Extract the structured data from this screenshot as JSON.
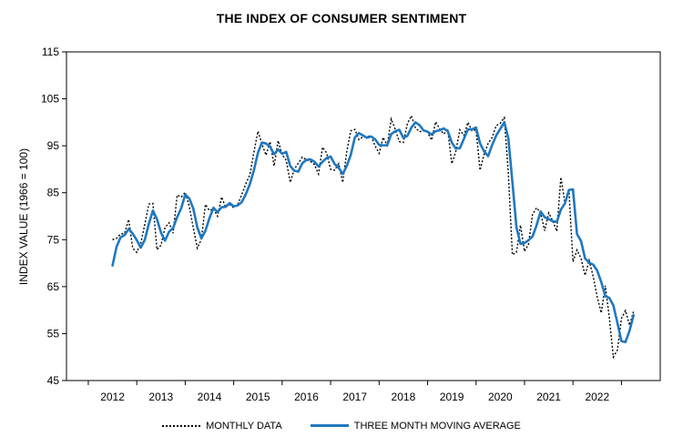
{
  "chart_data": {
    "type": "line",
    "title": "THE INDEX OF CONSUMER SENTIMENT",
    "xlabel": "",
    "ylabel": "INDEX VALUE (1966 = 100)",
    "ylim": [
      45,
      115
    ],
    "xlim": [
      2011.05,
      2023.3
    ],
    "yticks": [
      45,
      55,
      65,
      75,
      85,
      95,
      105,
      115
    ],
    "xticks": [
      "2012",
      "2013",
      "2014",
      "2015",
      "2016",
      "2017",
      "2018",
      "2019",
      "2020",
      "2021",
      "2022"
    ],
    "grid": false,
    "legend_position": "bottom",
    "series": [
      {
        "name": "MONTHLY DATA",
        "style": "dotted",
        "color": "#000000",
        "x_start": 2012.0,
        "x_step": 0.08333,
        "values": [
          75.0,
          75.3,
          76.2,
          76.4,
          79.3,
          73.2,
          72.3,
          74.3,
          78.3,
          82.6,
          82.7,
          72.9,
          73.8,
          77.6,
          78.6,
          76.4,
          84.5,
          84.1,
          85.1,
          82.1,
          77.5,
          73.2,
          75.1,
          82.5,
          81.2,
          81.6,
          80.0,
          84.1,
          81.9,
          82.5,
          81.8,
          82.5,
          84.6,
          86.9,
          88.8,
          93.6,
          98.1,
          95.4,
          93.0,
          95.9,
          90.7,
          96.1,
          93.1,
          91.9,
          87.2,
          90.0,
          91.3,
          92.6,
          92.0,
          91.7,
          91.0,
          89.0,
          94.7,
          93.5,
          90.0,
          89.8,
          91.2,
          87.2,
          93.8,
          98.2,
          98.5,
          96.3,
          96.9,
          97.0,
          97.1,
          95.0,
          93.4,
          96.8,
          95.1,
          100.7,
          98.5,
          95.9,
          95.7,
          99.7,
          101.4,
          98.8,
          98.0,
          98.2,
          97.9,
          96.2,
          100.1,
          98.6,
          97.5,
          98.3,
          91.2,
          93.8,
          98.4,
          97.2,
          100.0,
          98.2,
          98.4,
          89.8,
          93.2,
          95.5,
          96.8,
          99.3,
          99.8,
          101.0,
          89.1,
          71.8,
          72.3,
          78.1,
          72.5,
          74.1,
          80.4,
          81.8,
          80.7,
          76.9,
          80.7,
          79.0,
          76.8,
          88.3,
          82.9,
          85.5,
          70.3,
          72.8,
          71.0,
          67.4,
          70.6,
          67.2,
          62.8,
          59.4,
          65.2,
          58.4,
          50.0,
          51.5,
          58.2,
          59.9,
          56.8,
          59.7
        ]
      },
      {
        "name": "THREE MONTH MOVING AVERAGE",
        "style": "solid",
        "color": "#1f78c1",
        "x_start": 2012.0,
        "x_step": 0.08333,
        "values": [
          69.5,
          73.5,
          75.5,
          76.0,
          77.3,
          76.3,
          74.9,
          73.3,
          75.0,
          78.4,
          81.2,
          79.4,
          76.5,
          74.8,
          76.7,
          77.5,
          79.8,
          81.7,
          84.6,
          83.8,
          81.6,
          77.6,
          75.3,
          76.9,
          79.6,
          81.8,
          80.9,
          81.9,
          82.0,
          82.8,
          82.1,
          82.3,
          83.0,
          84.7,
          86.8,
          89.8,
          93.5,
          95.7,
          95.5,
          94.8,
          93.2,
          94.2,
          93.3,
          93.7,
          90.7,
          89.7,
          89.5,
          91.3,
          92.0,
          92.1,
          91.6,
          90.6,
          91.6,
          92.4,
          92.7,
          91.1,
          90.3,
          89.0,
          90.7,
          93.1,
          96.8,
          97.7,
          97.2,
          96.7,
          97.0,
          96.4,
          95.2,
          95.1,
          95.1,
          97.5,
          98.1,
          98.4,
          96.7,
          97.1,
          98.9,
          100.0,
          99.4,
          98.3,
          98.0,
          97.4,
          98.1,
          98.3,
          98.7,
          98.1,
          95.7,
          94.4,
          94.5,
          96.5,
          98.5,
          98.5,
          98.9,
          95.5,
          93.8,
          92.8,
          95.2,
          97.2,
          98.6,
          100.0,
          96.6,
          87.3,
          77.7,
          74.1,
          74.3,
          74.9,
          75.7,
          78.1,
          81.0,
          79.8,
          79.4,
          78.9,
          78.8,
          81.4,
          82.7,
          85.6,
          85.7,
          76.2,
          74.7,
          71.0,
          70.1,
          69.7,
          68.4,
          66.0,
          63.0,
          62.6,
          61.0,
          57.3,
          53.4,
          53.2,
          55.6,
          58.9
        ]
      }
    ]
  }
}
